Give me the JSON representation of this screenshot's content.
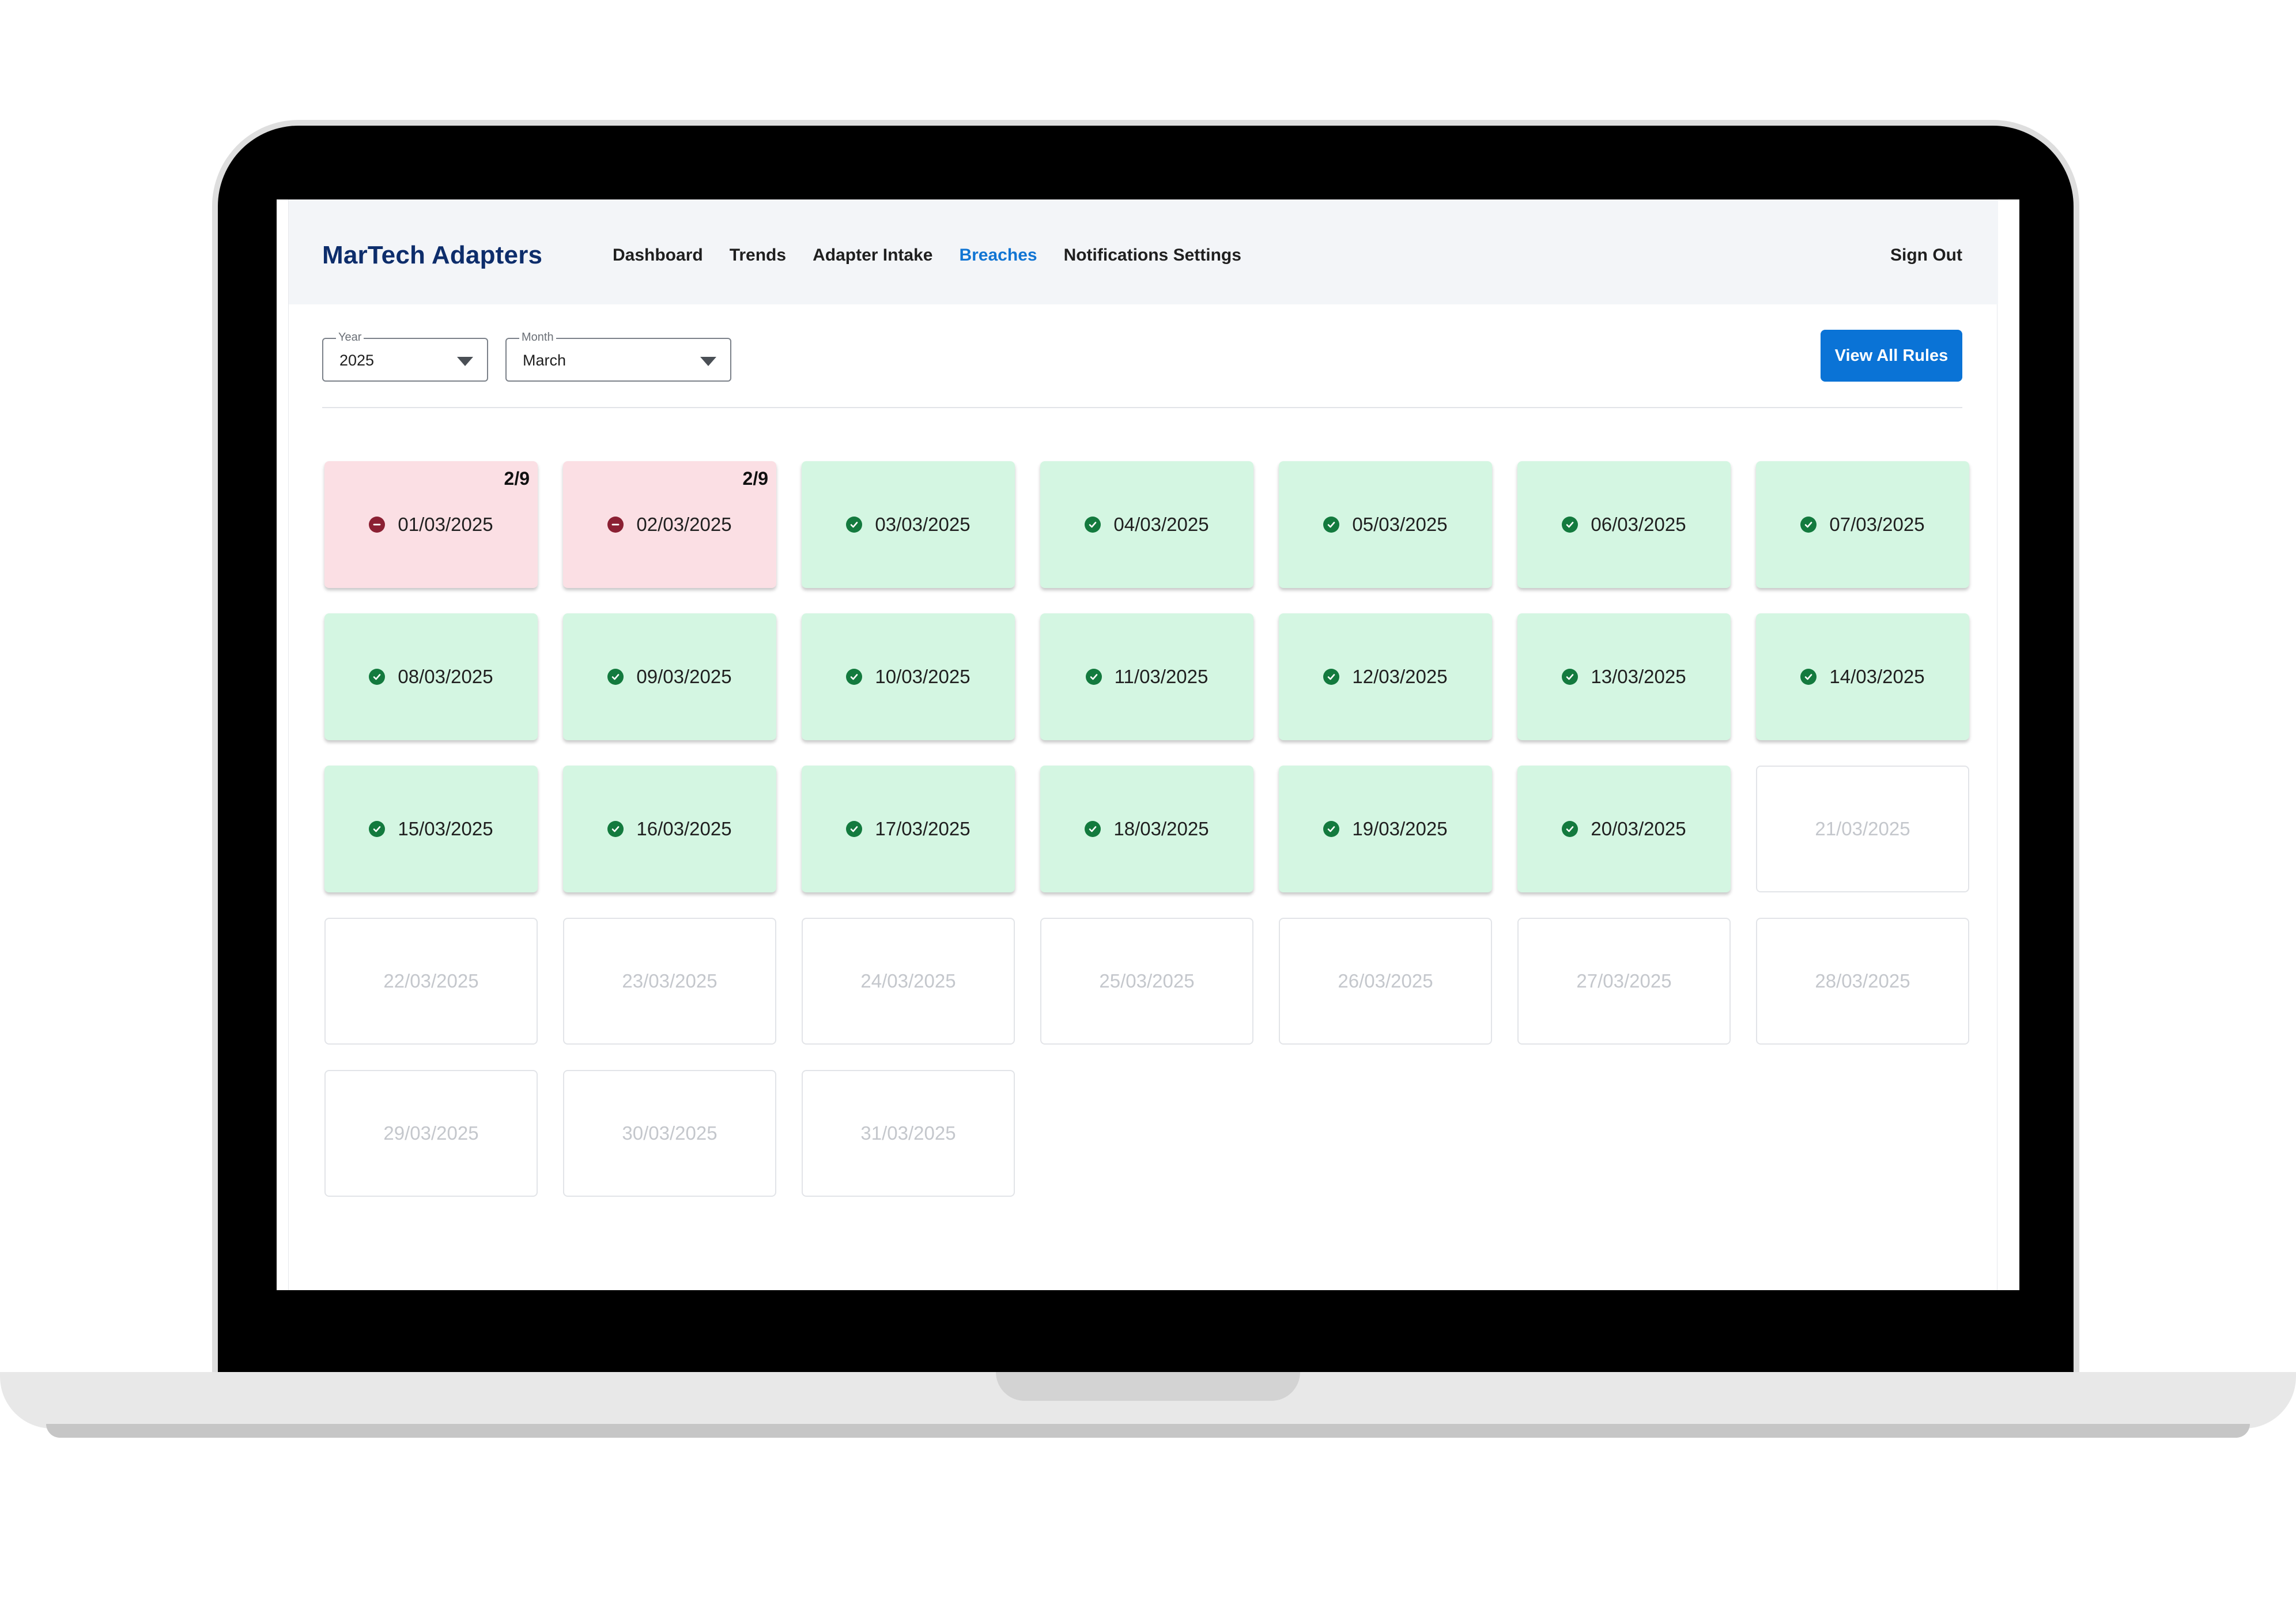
{
  "header": {
    "brand": "MarTech Adapters",
    "nav": [
      {
        "label": "Dashboard",
        "active": false
      },
      {
        "label": "Trends",
        "active": false
      },
      {
        "label": "Adapter Intake",
        "active": false
      },
      {
        "label": "Breaches",
        "active": true
      },
      {
        "label": "Notifications Settings",
        "active": false
      }
    ],
    "sign_out": "Sign Out"
  },
  "filters": {
    "year": {
      "label": "Year",
      "value": "2025"
    },
    "month": {
      "label": "Month",
      "value": "March"
    }
  },
  "actions": {
    "view_all_rules": "View All Rules"
  },
  "colors": {
    "accent": "#0a73d6",
    "pass_bg": "#d4f6e2",
    "pass_icon": "#137a3e",
    "breach_bg": "#fbdfe4",
    "breach_icon": "#8b2033"
  },
  "calendar": {
    "days": [
      {
        "date": "01/03/2025",
        "status": "breach",
        "count": "2/9",
        "icon": "minus-circle-icon"
      },
      {
        "date": "02/03/2025",
        "status": "breach",
        "count": "2/9",
        "icon": "minus-circle-icon"
      },
      {
        "date": "03/03/2025",
        "status": "pass",
        "icon": "check-circle-icon"
      },
      {
        "date": "04/03/2025",
        "status": "pass",
        "icon": "check-circle-icon"
      },
      {
        "date": "05/03/2025",
        "status": "pass",
        "icon": "check-circle-icon"
      },
      {
        "date": "06/03/2025",
        "status": "pass",
        "icon": "check-circle-icon"
      },
      {
        "date": "07/03/2025",
        "status": "pass",
        "icon": "check-circle-icon"
      },
      {
        "date": "08/03/2025",
        "status": "pass",
        "icon": "check-circle-icon"
      },
      {
        "date": "09/03/2025",
        "status": "pass",
        "icon": "check-circle-icon"
      },
      {
        "date": "10/03/2025",
        "status": "pass",
        "icon": "check-circle-icon"
      },
      {
        "date": "11/03/2025",
        "status": "pass",
        "icon": "check-circle-icon"
      },
      {
        "date": "12/03/2025",
        "status": "pass",
        "icon": "check-circle-icon"
      },
      {
        "date": "13/03/2025",
        "status": "pass",
        "icon": "check-circle-icon"
      },
      {
        "date": "14/03/2025",
        "status": "pass",
        "icon": "check-circle-icon"
      },
      {
        "date": "15/03/2025",
        "status": "pass",
        "icon": "check-circle-icon"
      },
      {
        "date": "16/03/2025",
        "status": "pass",
        "icon": "check-circle-icon"
      },
      {
        "date": "17/03/2025",
        "status": "pass",
        "icon": "check-circle-icon"
      },
      {
        "date": "18/03/2025",
        "status": "pass",
        "icon": "check-circle-icon"
      },
      {
        "date": "19/03/2025",
        "status": "pass",
        "icon": "check-circle-icon"
      },
      {
        "date": "20/03/2025",
        "status": "pass",
        "icon": "check-circle-icon"
      },
      {
        "date": "21/03/2025",
        "status": "future"
      },
      {
        "date": "22/03/2025",
        "status": "future"
      },
      {
        "date": "23/03/2025",
        "status": "future"
      },
      {
        "date": "24/03/2025",
        "status": "future"
      },
      {
        "date": "25/03/2025",
        "status": "future"
      },
      {
        "date": "26/03/2025",
        "status": "future"
      },
      {
        "date": "27/03/2025",
        "status": "future"
      },
      {
        "date": "28/03/2025",
        "status": "future"
      },
      {
        "date": "29/03/2025",
        "status": "future"
      },
      {
        "date": "30/03/2025",
        "status": "future"
      },
      {
        "date": "31/03/2025",
        "status": "future"
      }
    ]
  }
}
